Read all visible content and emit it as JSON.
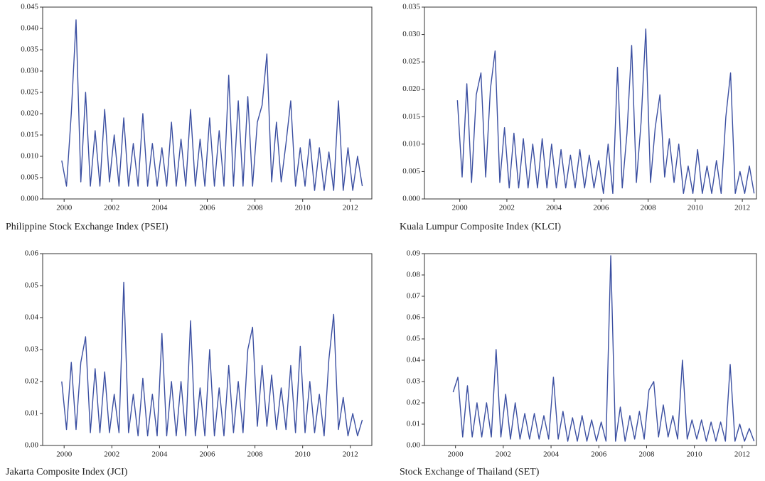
{
  "chart_data": [
    {
      "type": "line",
      "title": "Philippine Stock Exchange Index (PSEI)",
      "color": "#3b4fa1",
      "x": [
        1999.9,
        2000.1,
        2000.3,
        2000.5,
        2000.7,
        2000.9,
        2001.1,
        2001.3,
        2001.5,
        2001.7,
        2001.9,
        2002.1,
        2002.3,
        2002.5,
        2002.7,
        2002.9,
        2003.1,
        2003.3,
        2003.5,
        2003.7,
        2003.9,
        2004.1,
        2004.3,
        2004.5,
        2004.7,
        2004.9,
        2005.1,
        2005.3,
        2005.5,
        2005.7,
        2005.9,
        2006.1,
        2006.3,
        2006.5,
        2006.7,
        2006.9,
        2007.1,
        2007.3,
        2007.5,
        2007.7,
        2007.9,
        2008.1,
        2008.3,
        2008.5,
        2008.7,
        2008.9,
        2009.1,
        2009.3,
        2009.5,
        2009.7,
        2009.9,
        2010.1,
        2010.3,
        2010.5,
        2010.7,
        2010.9,
        2011.1,
        2011.3,
        2011.5,
        2011.7,
        2011.9,
        2012.1,
        2012.3,
        2012.5
      ],
      "values": [
        0.009,
        0.003,
        0.02,
        0.042,
        0.004,
        0.025,
        0.003,
        0.016,
        0.003,
        0.021,
        0.004,
        0.015,
        0.003,
        0.019,
        0.003,
        0.013,
        0.003,
        0.02,
        0.003,
        0.013,
        0.003,
        0.012,
        0.003,
        0.018,
        0.003,
        0.014,
        0.003,
        0.021,
        0.003,
        0.014,
        0.003,
        0.019,
        0.003,
        0.016,
        0.003,
        0.029,
        0.003,
        0.023,
        0.003,
        0.024,
        0.003,
        0.018,
        0.022,
        0.034,
        0.004,
        0.018,
        0.004,
        0.013,
        0.023,
        0.003,
        0.012,
        0.003,
        0.014,
        0.002,
        0.012,
        0.002,
        0.011,
        0.002,
        0.023,
        0.002,
        0.012,
        0.002,
        0.01,
        0.003
      ],
      "xlim": [
        1999.1,
        2012.9
      ],
      "xticks": [
        2000,
        2002,
        2004,
        2006,
        2008,
        2010,
        2012
      ],
      "ylim": [
        0,
        0.045
      ],
      "yticks": [
        {
          "value": 0,
          "label": "0.000"
        },
        0.005,
        {
          "value": 0.01,
          "label": "0.010"
        },
        0.015,
        {
          "value": 0.02,
          "label": "0.020"
        },
        0.025,
        {
          "value": 0.03,
          "label": "0.030"
        },
        0.035,
        {
          "value": 0.04,
          "label": "0.040"
        },
        0.045
      ]
    },
    {
      "type": "line",
      "title": "Kuala Lumpur Composite Index (KLCI)",
      "color": "#3b4fa1",
      "x": [
        1999.9,
        2000.1,
        2000.3,
        2000.5,
        2000.7,
        2000.9,
        2001.1,
        2001.3,
        2001.5,
        2001.7,
        2001.9,
        2002.1,
        2002.3,
        2002.5,
        2002.7,
        2002.9,
        2003.1,
        2003.3,
        2003.5,
        2003.7,
        2003.9,
        2004.1,
        2004.3,
        2004.5,
        2004.7,
        2004.9,
        2005.1,
        2005.3,
        2005.5,
        2005.7,
        2005.9,
        2006.1,
        2006.3,
        2006.5,
        2006.7,
        2006.9,
        2007.1,
        2007.3,
        2007.5,
        2007.7,
        2007.9,
        2008.1,
        2008.3,
        2008.5,
        2008.7,
        2008.9,
        2009.1,
        2009.3,
        2009.5,
        2009.7,
        2009.9,
        2010.1,
        2010.3,
        2010.5,
        2010.7,
        2010.9,
        2011.1,
        2011.3,
        2011.5,
        2011.7,
        2011.9,
        2012.1,
        2012.3,
        2012.5
      ],
      "values": [
        0.018,
        0.004,
        0.021,
        0.003,
        0.019,
        0.023,
        0.004,
        0.02,
        0.027,
        0.003,
        0.013,
        0.002,
        0.012,
        0.002,
        0.011,
        0.002,
        0.01,
        0.002,
        0.011,
        0.002,
        0.01,
        0.002,
        0.009,
        0.002,
        0.008,
        0.002,
        0.009,
        0.002,
        0.008,
        0.002,
        0.007,
        0.001,
        0.01,
        0.001,
        0.024,
        0.002,
        0.012,
        0.028,
        0.003,
        0.014,
        0.031,
        0.003,
        0.013,
        0.019,
        0.004,
        0.011,
        0.003,
        0.01,
        0.001,
        0.006,
        0.001,
        0.009,
        0.001,
        0.006,
        0.001,
        0.007,
        0.001,
        0.015,
        0.023,
        0.001,
        0.005,
        0.001,
        0.006,
        0.001
      ],
      "xlim": [
        1998.5,
        2012.6
      ],
      "xticks": [
        2000,
        2002,
        2004,
        2006,
        2008,
        2010,
        2012
      ],
      "ylim": [
        0,
        0.035
      ],
      "yticks": [
        {
          "value": 0,
          "label": "0.000"
        },
        0.005,
        {
          "value": 0.01,
          "label": "0.010"
        },
        0.015,
        {
          "value": 0.02,
          "label": "0.020"
        },
        0.025,
        {
          "value": 0.03,
          "label": "0.030"
        },
        0.035
      ]
    },
    {
      "type": "line",
      "title": "Jakarta Composite Index (JCI)",
      "color": "#3b4fa1",
      "x": [
        1999.9,
        2000.1,
        2000.3,
        2000.5,
        2000.7,
        2000.9,
        2001.1,
        2001.3,
        2001.5,
        2001.7,
        2001.9,
        2002.1,
        2002.3,
        2002.5,
        2002.7,
        2002.9,
        2003.1,
        2003.3,
        2003.5,
        2003.7,
        2003.9,
        2004.1,
        2004.3,
        2004.5,
        2004.7,
        2004.9,
        2005.1,
        2005.3,
        2005.5,
        2005.7,
        2005.9,
        2006.1,
        2006.3,
        2006.5,
        2006.7,
        2006.9,
        2007.1,
        2007.3,
        2007.5,
        2007.7,
        2007.9,
        2008.1,
        2008.3,
        2008.5,
        2008.7,
        2008.9,
        2009.1,
        2009.3,
        2009.5,
        2009.7,
        2009.9,
        2010.1,
        2010.3,
        2010.5,
        2010.7,
        2010.9,
        2011.1,
        2011.3,
        2011.5,
        2011.7,
        2011.9,
        2012.1,
        2012.3,
        2012.5
      ],
      "values": [
        0.02,
        0.005,
        0.026,
        0.005,
        0.026,
        0.034,
        0.004,
        0.024,
        0.004,
        0.023,
        0.004,
        0.016,
        0.004,
        0.051,
        0.004,
        0.016,
        0.003,
        0.021,
        0.003,
        0.016,
        0.003,
        0.035,
        0.003,
        0.02,
        0.003,
        0.02,
        0.003,
        0.039,
        0.003,
        0.018,
        0.003,
        0.03,
        0.003,
        0.018,
        0.003,
        0.025,
        0.004,
        0.02,
        0.004,
        0.03,
        0.037,
        0.006,
        0.025,
        0.006,
        0.022,
        0.005,
        0.018,
        0.005,
        0.025,
        0.004,
        0.031,
        0.004,
        0.02,
        0.004,
        0.016,
        0.003,
        0.027,
        0.041,
        0.005,
        0.015,
        0.003,
        0.01,
        0.003,
        0.008
      ],
      "xlim": [
        1999.1,
        2012.9
      ],
      "xticks": [
        2000,
        2002,
        2004,
        2006,
        2008,
        2010,
        2012
      ],
      "ylim": [
        0,
        0.06
      ],
      "yticks": [
        {
          "value": 0,
          "label": "0.00"
        },
        0.01,
        0.02,
        0.03,
        0.04,
        0.05,
        0.06
      ]
    },
    {
      "type": "line",
      "title": "Stock Exchange of Thailand (SET)",
      "color": "#3b4fa1",
      "x": [
        1999.9,
        2000.1,
        2000.3,
        2000.5,
        2000.7,
        2000.9,
        2001.1,
        2001.3,
        2001.5,
        2001.7,
        2001.9,
        2002.1,
        2002.3,
        2002.5,
        2002.7,
        2002.9,
        2003.1,
        2003.3,
        2003.5,
        2003.7,
        2003.9,
        2004.1,
        2004.3,
        2004.5,
        2004.7,
        2004.9,
        2005.1,
        2005.3,
        2005.5,
        2005.7,
        2005.9,
        2006.1,
        2006.3,
        2006.5,
        2006.7,
        2006.9,
        2007.1,
        2007.3,
        2007.5,
        2007.7,
        2007.9,
        2008.1,
        2008.3,
        2008.5,
        2008.7,
        2008.9,
        2009.1,
        2009.3,
        2009.5,
        2009.7,
        2009.9,
        2010.1,
        2010.3,
        2010.5,
        2010.7,
        2010.9,
        2011.1,
        2011.3,
        2011.5,
        2011.7,
        2011.9,
        2012.1,
        2012.3,
        2012.5
      ],
      "values": [
        0.025,
        0.032,
        0.004,
        0.028,
        0.004,
        0.02,
        0.004,
        0.02,
        0.004,
        0.045,
        0.004,
        0.024,
        0.003,
        0.02,
        0.003,
        0.015,
        0.003,
        0.015,
        0.003,
        0.014,
        0.003,
        0.032,
        0.003,
        0.016,
        0.002,
        0.013,
        0.002,
        0.014,
        0.002,
        0.012,
        0.002,
        0.011,
        0.002,
        0.089,
        0.002,
        0.018,
        0.002,
        0.014,
        0.003,
        0.016,
        0.003,
        0.026,
        0.03,
        0.004,
        0.019,
        0.004,
        0.014,
        0.003,
        0.04,
        0.003,
        0.012,
        0.003,
        0.012,
        0.002,
        0.011,
        0.002,
        0.011,
        0.002,
        0.038,
        0.002,
        0.01,
        0.002,
        0.008,
        0.002
      ],
      "xlim": [
        1998.7,
        2012.6
      ],
      "xticks": [
        2000,
        2002,
        2004,
        2006,
        2008,
        2010,
        2012
      ],
      "ylim": [
        0,
        0.09
      ],
      "yticks": [
        {
          "value": 0,
          "label": "0.00"
        },
        0.01,
        0.02,
        0.03,
        0.04,
        0.05,
        0.06,
        0.07,
        0.08,
        0.09
      ]
    }
  ]
}
